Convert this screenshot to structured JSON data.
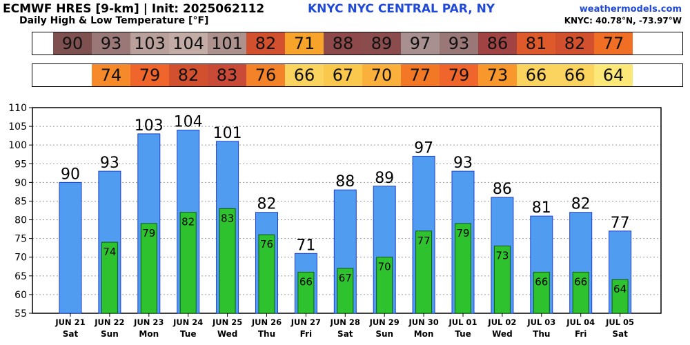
{
  "header": {
    "title": "ECMWF HRES [9-km] | Init: 2025062112",
    "subtitle": "Daily High & Low Temperature [°F]",
    "station": "KNYC NYC CENTRAL PAR, NY",
    "site": "weathermodels.com",
    "coords": "KNYC: 40.78°N, -73.97°W"
  },
  "colors": {
    "high_bar": "#4f9cf0",
    "low_bar": "#2fc22f",
    "bar_edge": "#1f3fd0",
    "low_edge": "#0b5a0b"
  },
  "strips": {
    "high": [
      {
        "value": "90",
        "color": "#7e5050"
      },
      {
        "value": "93",
        "color": "#9a7878"
      },
      {
        "value": "103",
        "color": "#b9a09a"
      },
      {
        "value": "104",
        "color": "#c3aca6"
      },
      {
        "value": "101",
        "color": "#ad918c"
      },
      {
        "value": "82",
        "color": "#d3502e"
      },
      {
        "value": "71",
        "color": "#f8a42a"
      },
      {
        "value": "88",
        "color": "#8e4a4a"
      },
      {
        "value": "89",
        "color": "#8a4c4c"
      },
      {
        "value": "97",
        "color": "#a89090"
      },
      {
        "value": "93",
        "color": "#9a7878"
      },
      {
        "value": "86",
        "color": "#a14343"
      },
      {
        "value": "81",
        "color": "#df5a2a"
      },
      {
        "value": "82",
        "color": "#d3502e"
      },
      {
        "value": "77",
        "color": "#f06f24"
      }
    ],
    "low": [
      {
        "value": "",
        "color": "#ffffff"
      },
      {
        "value": "74",
        "color": "#f68a2a"
      },
      {
        "value": "79",
        "color": "#f0652c"
      },
      {
        "value": "82",
        "color": "#d3502e"
      },
      {
        "value": "83",
        "color": "#c94a36"
      },
      {
        "value": "76",
        "color": "#f48228"
      },
      {
        "value": "66",
        "color": "#fbd460"
      },
      {
        "value": "67",
        "color": "#fbc84e"
      },
      {
        "value": "70",
        "color": "#fab03a"
      },
      {
        "value": "77",
        "color": "#f27826"
      },
      {
        "value": "79",
        "color": "#f0652c"
      },
      {
        "value": "73",
        "color": "#f8972c"
      },
      {
        "value": "66",
        "color": "#fbd460"
      },
      {
        "value": "66",
        "color": "#fbd460"
      },
      {
        "value": "64",
        "color": "#fbe878"
      }
    ]
  },
  "chart_data": {
    "type": "bar",
    "categories": [
      "JUN 21",
      "JUN 22",
      "JUN 23",
      "JUN 24",
      "JUN 25",
      "JUN 26",
      "JUN 27",
      "JUN 28",
      "JUN 29",
      "JUN 30",
      "JUL 01",
      "JUL 02",
      "JUL 03",
      "JUL 04",
      "JUL 05"
    ],
    "weekdays": [
      "Sat",
      "Sun",
      "Mon",
      "Tue",
      "Wed",
      "Thu",
      "Fri",
      "Sat",
      "Sun",
      "Mon",
      "Tue",
      "Wed",
      "Thu",
      "Fri",
      "Sat"
    ],
    "series": [
      {
        "values": [
          90,
          93,
          103,
          104,
          101,
          82,
          71,
          88,
          89,
          97,
          93,
          86,
          81,
          82,
          77
        ]
      },
      {
        "values": [
          null,
          74,
          79,
          82,
          83,
          76,
          66,
          67,
          70,
          77,
          79,
          73,
          66,
          66,
          64
        ]
      }
    ],
    "ylim": [
      55,
      110
    ],
    "yticks": [
      55,
      60,
      65,
      70,
      75,
      80,
      85,
      90,
      95,
      100,
      105,
      110
    ],
    "grid": true
  }
}
